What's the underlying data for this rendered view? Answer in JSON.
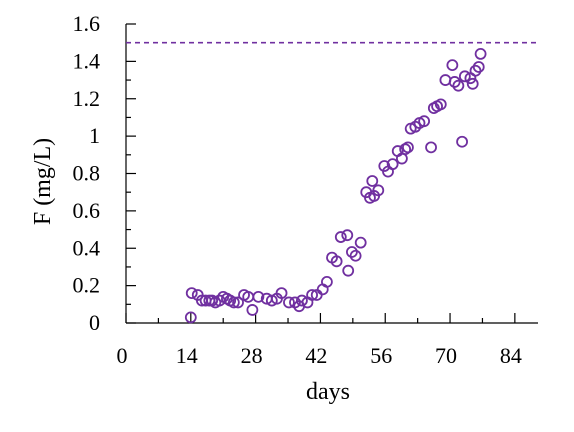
{
  "chart_data": {
    "type": "scatter",
    "xlabel": "days",
    "ylabel": "F (mg/L)",
    "xlim": [
      0,
      89
    ],
    "ylim": [
      0,
      1.6
    ],
    "x_ticks": [
      0,
      14,
      28,
      42,
      56,
      70,
      84
    ],
    "x_tick_labels": [
      "0",
      "14",
      "28",
      "42",
      "56",
      "70",
      "84"
    ],
    "y_ticks": [
      0,
      0.2,
      0.4,
      0.6,
      0.8,
      1.0,
      1.2,
      1.4,
      1.6
    ],
    "y_tick_labels": [
      "0",
      "0.2",
      "0.4",
      "0.6",
      "0.8",
      "1",
      "1.2",
      "1.4",
      "1.6"
    ],
    "grid": false,
    "marker_color": "#7030a0",
    "reference_line": {
      "y": 1.5,
      "style": "dashed",
      "color": "#7030a0"
    },
    "series": [
      {
        "marker": "open-circle",
        "points": [
          [
            14.0,
            0.03
          ],
          [
            14.2,
            0.16
          ],
          [
            15.5,
            0.15
          ],
          [
            16.4,
            0.12
          ],
          [
            17.2,
            0.12
          ],
          [
            18.0,
            0.12
          ],
          [
            18.6,
            0.12
          ],
          [
            19.3,
            0.11
          ],
          [
            20.2,
            0.12
          ],
          [
            21.0,
            0.14
          ],
          [
            21.8,
            0.13
          ],
          [
            22.5,
            0.12
          ],
          [
            23.3,
            0.11
          ],
          [
            24.2,
            0.11
          ],
          [
            25.5,
            0.15
          ],
          [
            26.4,
            0.14
          ],
          [
            27.3,
            0.07
          ],
          [
            28.6,
            0.14
          ],
          [
            30.4,
            0.13
          ],
          [
            31.5,
            0.12
          ],
          [
            32.6,
            0.13
          ],
          [
            33.6,
            0.16
          ],
          [
            35.2,
            0.11
          ],
          [
            36.5,
            0.11
          ],
          [
            37.4,
            0.09
          ],
          [
            38.0,
            0.12
          ],
          [
            39.2,
            0.11
          ],
          [
            40.2,
            0.15
          ],
          [
            41.2,
            0.15
          ],
          [
            42.5,
            0.18
          ],
          [
            43.4,
            0.22
          ],
          [
            44.5,
            0.35
          ],
          [
            45.5,
            0.33
          ],
          [
            46.4,
            0.46
          ],
          [
            47.8,
            0.47
          ],
          [
            48.0,
            0.28
          ],
          [
            48.8,
            0.38
          ],
          [
            49.6,
            0.36
          ],
          [
            50.7,
            0.43
          ],
          [
            51.9,
            0.7
          ],
          [
            52.7,
            0.67
          ],
          [
            53.2,
            0.76
          ],
          [
            53.6,
            0.68
          ],
          [
            54.5,
            0.71
          ],
          [
            55.8,
            0.84
          ],
          [
            56.6,
            0.81
          ],
          [
            57.6,
            0.85
          ],
          [
            58.7,
            0.92
          ],
          [
            59.6,
            0.88
          ],
          [
            60.3,
            0.93
          ],
          [
            60.9,
            0.94
          ],
          [
            61.5,
            1.04
          ],
          [
            62.5,
            1.05
          ],
          [
            63.4,
            1.07
          ],
          [
            64.4,
            1.08
          ],
          [
            65.9,
            0.94
          ],
          [
            66.5,
            1.15
          ],
          [
            67.2,
            1.16
          ],
          [
            68.0,
            1.17
          ],
          [
            69.0,
            1.3
          ],
          [
            70.5,
            1.38
          ],
          [
            71.0,
            1.29
          ],
          [
            71.8,
            1.27
          ],
          [
            72.6,
            0.97
          ],
          [
            73.2,
            1.32
          ],
          [
            74.4,
            1.31
          ],
          [
            74.9,
            1.28
          ],
          [
            75.5,
            1.35
          ],
          [
            76.2,
            1.37
          ],
          [
            76.6,
            1.44
          ]
        ]
      }
    ]
  }
}
